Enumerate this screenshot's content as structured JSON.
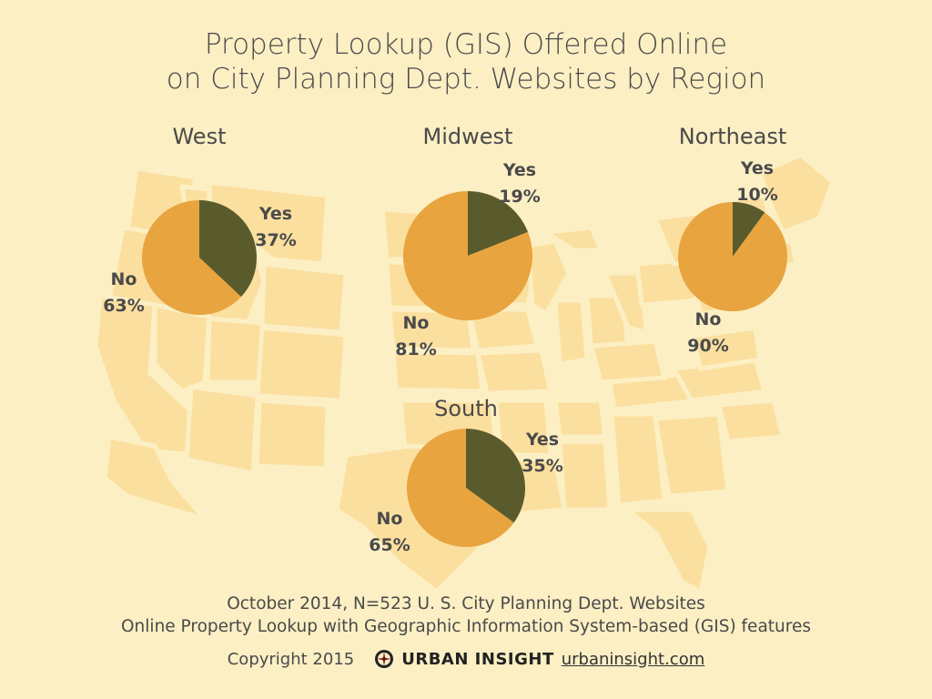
{
  "title_line1": "Property Lookup (GIS) Offered Online",
  "title_line2": "on City Planning Dept. Websites by Region",
  "footer_line1": "October 2014, N=523 U. S. City Planning Dept. Websites",
  "footer_line2": "Online Property Lookup with Geographic Information System-based (GIS) features",
  "copyright": "Copyright 2015",
  "brand_name": "URBAN INSIGHT",
  "brand_url": "urbaninsight.com",
  "colors": {
    "background": "#fcefc4",
    "map": "#fbdf9f",
    "yes": "#5a5b2c",
    "no": "#e8a43f"
  },
  "chart_data": [
    {
      "type": "pie",
      "region": "West",
      "slices": [
        {
          "label": "Yes",
          "value": 37,
          "text": "37%"
        },
        {
          "label": "No",
          "value": 63,
          "text": "63%"
        }
      ]
    },
    {
      "type": "pie",
      "region": "Midwest",
      "slices": [
        {
          "label": "Yes",
          "value": 19,
          "text": "19%"
        },
        {
          "label": "No",
          "value": 81,
          "text": "81%"
        }
      ]
    },
    {
      "type": "pie",
      "region": "Northeast",
      "slices": [
        {
          "label": "Yes",
          "value": 10,
          "text": "10%"
        },
        {
          "label": "No",
          "value": 90,
          "text": "90%"
        }
      ]
    },
    {
      "type": "pie",
      "region": "South",
      "slices": [
        {
          "label": "Yes",
          "value": 35,
          "text": "35%"
        },
        {
          "label": "No",
          "value": 65,
          "text": "65%"
        }
      ]
    }
  ]
}
